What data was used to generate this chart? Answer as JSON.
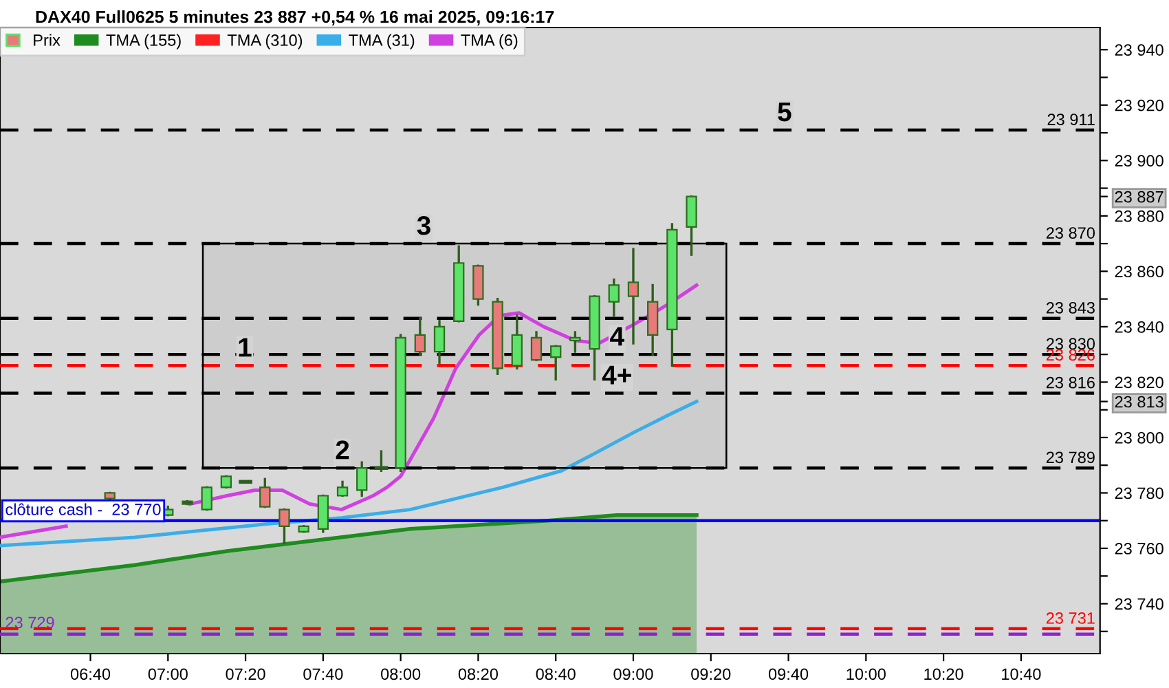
{
  "chart_data": {
    "type": "candlestick",
    "title": "DAX40 Full0625 5 minutes 23 887 +0,54 % 16 mai 2025, 09:16:17",
    "series": [
      {
        "name": "Prix",
        "type": "candlestick",
        "x": [
          6.75,
          7.0,
          7.0833,
          7.1667,
          7.25,
          7.3333,
          7.4167,
          7.5,
          7.5833,
          7.6667,
          7.75,
          7.8333,
          7.9167,
          8.0,
          8.0833,
          8.1667,
          8.25,
          8.3333,
          8.4167,
          8.5,
          8.5833,
          8.6667,
          8.75,
          8.8333,
          8.9167,
          9.0,
          9.0833,
          9.1667,
          9.25
        ],
        "ohlc": [
          [
            23780,
            23780,
            23778,
            23778
          ],
          [
            23772,
            23775,
            23772,
            23774
          ],
          [
            23777,
            23777,
            23776,
            23776
          ],
          [
            23774,
            23782,
            23774,
            23782
          ],
          [
            23782,
            23786,
            23782,
            23786
          ],
          [
            23784,
            23784,
            23784,
            23784
          ],
          [
            23782,
            23785,
            23775,
            23775
          ],
          [
            23774,
            23774,
            23762,
            23768
          ],
          [
            23766,
            23768,
            23766,
            23768
          ],
          [
            23767,
            23779,
            23766,
            23779
          ],
          [
            23779,
            23784,
            23779,
            23782
          ],
          [
            23781,
            23791,
            23779,
            23789
          ],
          [
            23789,
            23795,
            23788,
            23789
          ],
          [
            23789,
            23837,
            23788,
            23836
          ],
          [
            23837,
            23843,
            23830,
            23831
          ],
          [
            23831,
            23842,
            23827,
            23840
          ],
          [
            23842,
            23869,
            23842,
            23863
          ],
          [
            23862,
            23862,
            23848,
            23850
          ],
          [
            23849,
            23850,
            23823,
            23825
          ],
          [
            23826,
            23844,
            23825,
            23837
          ],
          [
            23836,
            23838,
            23828,
            23828
          ],
          [
            23829,
            23833,
            23821,
            23833
          ],
          [
            23835,
            23838,
            23831,
            23836
          ],
          [
            23832,
            23851,
            23821,
            23851
          ],
          [
            23849,
            23857,
            23844,
            23855
          ],
          [
            23856,
            23868,
            23834,
            23851
          ],
          [
            23849,
            23855,
            23830,
            23837
          ],
          [
            23839,
            23877,
            23826,
            23875
          ],
          [
            23876,
            23887,
            23866,
            23887
          ]
        ],
        "colors": [
          "#e87a7a",
          "#5de26a",
          "#2e5e1e",
          "#5de26a",
          "#5de26a",
          "#2e5e1e",
          "#e87a7a",
          "#e87a7a",
          "#5de26a",
          "#5de26a",
          "#5de26a",
          "#5de26a",
          "#2e5e1e",
          "#5de26a",
          "#e87a7a",
          "#5de26a",
          "#5de26a",
          "#e87a7a",
          "#e87a7a",
          "#5de26a",
          "#e87a7a",
          "#5de26a",
          "#5de26a",
          "#5de26a",
          "#5de26a",
          "#e87a7a",
          "#e87a7a",
          "#5de26a",
          "#5de26a"
        ]
      },
      {
        "name": "TMA (155)",
        "type": "area",
        "color": "#1e8c1e",
        "x": [
          6.278,
          6.858,
          7.254,
          7.645,
          8.041,
          8.633,
          8.929,
          9.272
        ],
        "values": [
          23748,
          23754,
          23759,
          23763,
          23767,
          23770,
          23772,
          23772
        ]
      },
      {
        "name": "TMA (310)",
        "type": "line",
        "color": "#ff2020"
      },
      {
        "name": "TMA (31)",
        "type": "line",
        "color": "#3aaee8",
        "x": [
          6.278,
          6.858,
          7.45,
          7.746,
          8.041,
          8.438,
          8.692,
          8.828,
          9.006,
          9.148,
          9.272
        ],
        "values": [
          23761,
          23764,
          23769,
          23771,
          23774,
          23782,
          23788,
          23794,
          23802,
          23808,
          23813
        ]
      },
      {
        "name": "TMA (6)",
        "type": "line",
        "color": "#d040e0",
        "x": [
          6.278,
          6.562,
          6.917,
          7.095,
          7.254,
          7.373,
          7.491,
          7.609,
          7.746,
          7.882,
          7.941,
          8.0,
          8.041,
          8.142,
          8.237,
          8.337,
          8.426,
          8.509,
          8.615,
          8.751,
          8.852,
          9.006,
          9.148,
          9.272
        ],
        "values": [
          23764,
          23768,
          null,
          23776,
          23779,
          23781,
          23781,
          23776,
          23774,
          23779,
          23782,
          23786,
          23792,
          23807,
          23825,
          23837,
          23844,
          23845,
          23840,
          23835,
          23834,
          23841,
          23848,
          23855
        ]
      }
    ],
    "xlim": [
      6.278,
      11.006
    ],
    "xticks": [
      {
        "value": 6.6667,
        "label": "06:40"
      },
      {
        "value": 7.0,
        "label": "07:00"
      },
      {
        "value": 7.3333,
        "label": "07:20"
      },
      {
        "value": 7.6667,
        "label": "07:40"
      },
      {
        "value": 8.0,
        "label": "08:00"
      },
      {
        "value": 8.3333,
        "label": "08:20"
      },
      {
        "value": 8.6667,
        "label": "08:40"
      },
      {
        "value": 9.0,
        "label": "09:00"
      },
      {
        "value": 9.3333,
        "label": "09:20"
      },
      {
        "value": 9.6667,
        "label": "09:40"
      },
      {
        "value": 10.0,
        "label": "10:00"
      },
      {
        "value": 10.3333,
        "label": "10:20"
      },
      {
        "value": 10.6667,
        "label": "10:40"
      }
    ],
    "ylim": [
      23722,
      23948
    ],
    "yticks": [
      {
        "value": 23730,
        "label": null
      },
      {
        "value": 23740,
        "label": "23 740"
      },
      {
        "value": 23750,
        "label": null
      },
      {
        "value": 23760,
        "label": "23 760"
      },
      {
        "value": 23770,
        "label": null
      },
      {
        "value": 23780,
        "label": "23 780"
      },
      {
        "value": 23790,
        "label": null
      },
      {
        "value": 23800,
        "label": "23 800"
      },
      {
        "value": 23810,
        "label": null
      },
      {
        "value": 23813,
        "label": "23 813"
      },
      {
        "value": 23820,
        "label": "23 820"
      },
      {
        "value": 23830,
        "label": null
      },
      {
        "value": 23840,
        "label": "23 840"
      },
      {
        "value": 23850,
        "label": null
      },
      {
        "value": 23860,
        "label": "23 860"
      },
      {
        "value": 23870,
        "label": null
      },
      {
        "value": 23880,
        "label": "23 880"
      },
      {
        "value": 23887,
        "label": "23 887"
      },
      {
        "value": 23890,
        "label": null
      },
      {
        "value": 23900,
        "label": "23 900"
      },
      {
        "value": 23910,
        "label": null
      },
      {
        "value": 23920,
        "label": "23 920"
      },
      {
        "value": 23930,
        "label": null
      },
      {
        "value": 23940,
        "label": "23 940"
      }
    ],
    "ref_lines": [
      {
        "axis": "y",
        "value": 23911,
        "label": "23 911",
        "color": "#000000",
        "line_style": "dashed"
      },
      {
        "axis": "y",
        "value": 23870,
        "label": "23 870",
        "color": "#000000",
        "line_style": "dashed"
      },
      {
        "axis": "y",
        "value": 23843,
        "label": "23 843",
        "color": "#000000",
        "line_style": "dashed"
      },
      {
        "axis": "y",
        "value": 23830,
        "label": "23 830",
        "color": "#000000",
        "line_style": "dashed"
      },
      {
        "axis": "y",
        "value": 23826,
        "label": "23 826",
        "color": "#ff0000",
        "line_style": "dashed"
      },
      {
        "axis": "y",
        "value": 23816,
        "label": "23 816",
        "color": "#000000",
        "line_style": "dashed"
      },
      {
        "axis": "y",
        "value": 23789,
        "label": "23 789",
        "color": "#000000",
        "line_style": "dashed"
      },
      {
        "axis": "y",
        "value": 23770,
        "color": "#0000ff",
        "line_style": "solid"
      },
      {
        "axis": "y",
        "value": 23731,
        "label": "23 731",
        "color": "#ff0000",
        "line_style": "dashed"
      },
      {
        "axis": "y",
        "value": 23729,
        "color": "#9020d0",
        "line_style": "dashed"
      }
    ],
    "bands": [
      {
        "axis": "y",
        "from": 23789,
        "to": 23870,
        "color": "#000000"
      }
    ],
    "annotations": [
      {
        "text": "clôture cash -  23 770",
        "x": 6.3,
        "y": 23770
      },
      {
        "text": "23 729",
        "x": 6.3,
        "y": 23729
      },
      {
        "text": "1",
        "x": 7.33,
        "y": 23826
      },
      {
        "text": "2",
        "x": 7.75,
        "y": 23789
      },
      {
        "text": "3",
        "x": 8.1,
        "y": 23870
      },
      {
        "text": "4",
        "x": 8.93,
        "y": 23830
      },
      {
        "text": "4+",
        "x": 8.93,
        "y": 23816
      },
      {
        "text": "5",
        "x": 9.65,
        "y": 23911
      }
    ],
    "legend": "top left",
    "grid": false
  }
}
